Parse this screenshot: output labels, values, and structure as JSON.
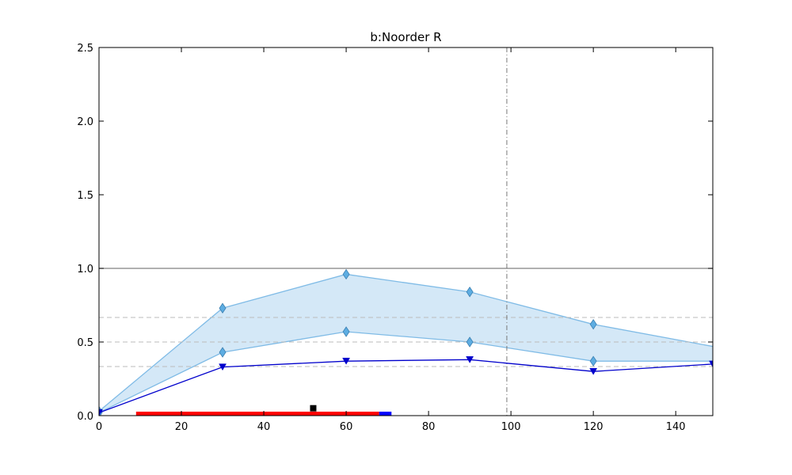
{
  "chart_data": {
    "type": "line",
    "title": "b:Noorder R",
    "xlabel": "",
    "ylabel": "",
    "xlim": [
      0,
      149
    ],
    "ylim": [
      0,
      2.5
    ],
    "x_ticks": [
      0,
      20,
      40,
      60,
      80,
      100,
      120,
      140
    ],
    "y_ticks": [
      0.0,
      0.5,
      1.0,
      1.5,
      2.0,
      2.5
    ],
    "y_tick_labels": [
      "0.0",
      "0.5",
      "1.0",
      "1.5",
      "2.0",
      "2.5"
    ],
    "grid": false,
    "reference_lines": {
      "horizontal_solid": 1.0,
      "horizontal_dashed": [
        0.333,
        0.5,
        0.667
      ],
      "vertical_dashdot": 99
    },
    "band": {
      "color": "#d4e8f7",
      "edge_color": "#7fbbe6",
      "x": [
        0,
        30,
        60,
        90,
        120,
        149
      ],
      "upper": [
        0.03,
        0.73,
        0.96,
        0.84,
        0.62,
        0.47
      ],
      "lower": [
        0.02,
        0.43,
        0.57,
        0.5,
        0.37,
        0.37
      ]
    },
    "series": [
      {
        "marker": "diamond",
        "color": "#5dade2",
        "x": [
          0,
          30,
          60,
          90,
          120
        ],
        "y": [
          0.03,
          0.73,
          0.96,
          0.84,
          0.62
        ]
      },
      {
        "marker": "diamond",
        "color": "#5dade2",
        "x": [
          0,
          30,
          60,
          90,
          120
        ],
        "y": [
          0.02,
          0.43,
          0.57,
          0.5,
          0.37
        ]
      },
      {
        "marker": "triangle-down",
        "color": "#0000cc",
        "x": [
          0,
          30,
          60,
          90,
          120,
          149
        ],
        "y": [
          0.02,
          0.33,
          0.37,
          0.38,
          0.3,
          0.35
        ]
      }
    ],
    "bars_at_baseline": [
      {
        "x_start": 9,
        "x_end": 68,
        "color": "#ff0000"
      },
      {
        "x_start": 68,
        "x_end": 71,
        "color": "#0000ff"
      }
    ],
    "black_marker": {
      "x": 52,
      "y": 0.05,
      "color": "#000000"
    }
  }
}
